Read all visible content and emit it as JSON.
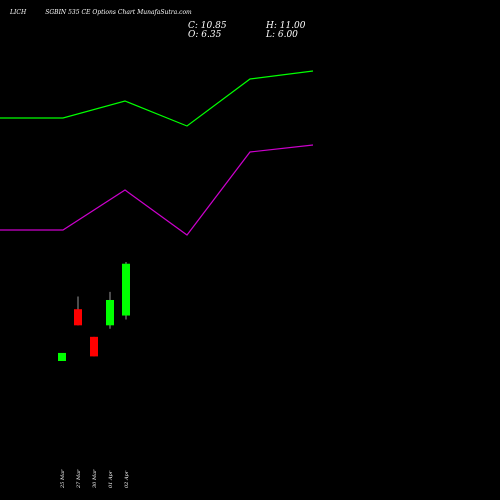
{
  "header": {
    "title": "LICH          SGBIN 535 CE Options Chart MunafaSutra.com",
    "c_label": "C: 10.85",
    "h_label": "H: 11.00",
    "o_label": "O: 6.35",
    "l_label": "L: 6.00"
  },
  "colors": {
    "background": "#000000",
    "up": "#00ff00",
    "down": "#ff0000",
    "line_green": "#00ff00",
    "line_magenta": "#cc00cc"
  },
  "chart_data": {
    "type": "candlestick",
    "categories": [
      "25 Mar",
      "27 Mar",
      "30 Mar",
      "01 Apr",
      "02 Apr"
    ],
    "candles": [
      {
        "date": "25 Mar",
        "open": 2.4,
        "high": 3.1,
        "low": 2.4,
        "close": 3.1
      },
      {
        "date": "27 Mar",
        "open": 6.9,
        "high": 8.0,
        "low": 5.5,
        "close": 5.5
      },
      {
        "date": "30 Mar",
        "open": 4.5,
        "high": 4.5,
        "low": 2.8,
        "close": 2.8
      },
      {
        "date": "01 Apr",
        "open": 5.5,
        "high": 8.4,
        "low": 5.2,
        "close": 7.7
      },
      {
        "date": "02 Apr",
        "open": 6.35,
        "high": 11.0,
        "low": 6.0,
        "close": 10.85
      }
    ],
    "overlay_lines": [
      {
        "color": "#00ff00",
        "values": [
          118,
          118,
          101,
          126,
          79,
          71
        ]
      },
      {
        "color": "#cc00cc",
        "values": [
          230,
          230,
          190,
          235,
          152,
          145
        ]
      }
    ],
    "xlabel": "",
    "ylabel": ""
  }
}
